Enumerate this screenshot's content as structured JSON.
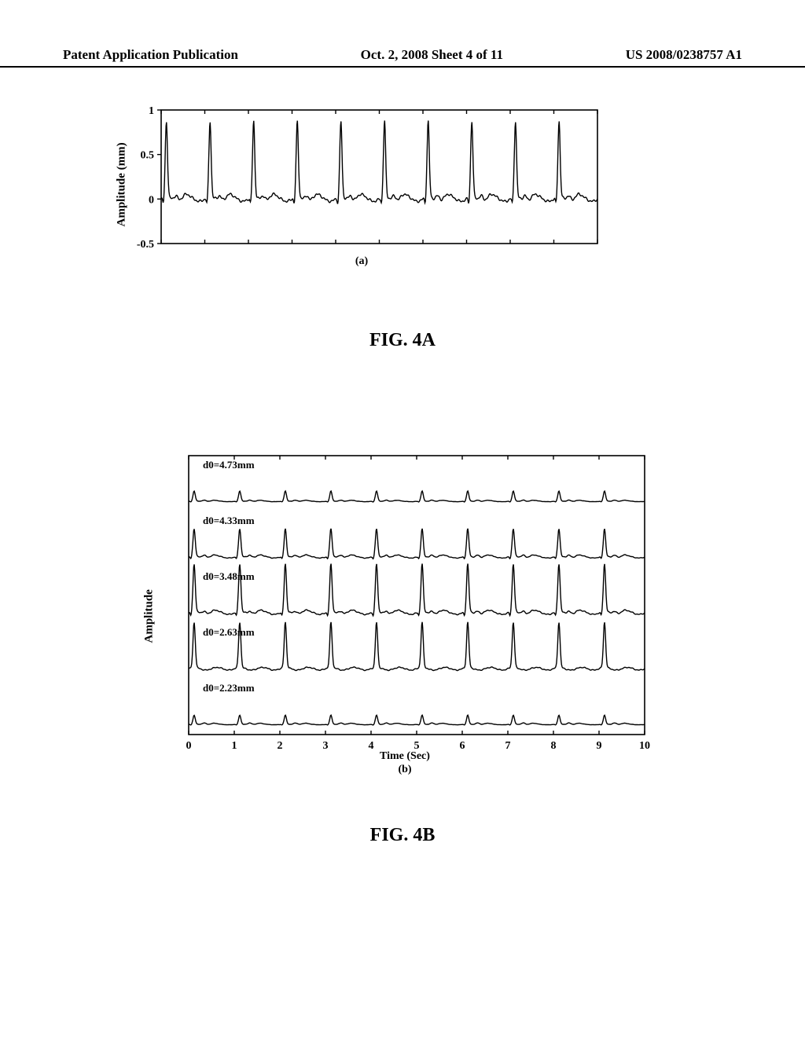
{
  "header": {
    "left": "Patent Application Publication",
    "center": "Oct. 2, 2008  Sheet 4 of 11",
    "right": "US 2008/0238757 A1"
  },
  "figA": {
    "label": "FIG. 4A",
    "sublabel": "(a)",
    "ylabel": "Amplitude (mm)",
    "yticks": [
      -0.5,
      0,
      0.5,
      1
    ],
    "ylim": [
      -0.5,
      1
    ],
    "xlim": [
      0,
      10
    ],
    "n_xticks": 11,
    "line_color": "#000000",
    "background": "#ffffff",
    "stroke_width": 1.4,
    "pulse_period": 1.0,
    "pulse_height": 0.85,
    "baseline": 0,
    "dicrotic_rise": 0.07,
    "noise_amp": 0.03
  },
  "figB": {
    "label": "FIG. 4B",
    "sublabel": "(b)",
    "ylabel": "Amplitude",
    "xlabel": "Time (Sec)",
    "xticks": [
      0,
      1,
      2,
      3,
      4,
      5,
      6,
      7,
      8,
      9,
      10
    ],
    "xlim": [
      0,
      10
    ],
    "line_color": "#000000",
    "background": "#ffffff",
    "stroke_width": 1.4,
    "series": [
      {
        "label": "d0=4.73mm",
        "amplitude": 0.2,
        "dicrotic": 0.15
      },
      {
        "label": "d0=4.33mm",
        "amplitude": 0.55,
        "dicrotic": 0.1
      },
      {
        "label": "d0=3.48mm",
        "amplitude": 0.95,
        "dicrotic": 0.06
      },
      {
        "label": "d0=2.63mm",
        "amplitude": 0.9,
        "dicrotic": 0.0
      },
      {
        "label": "d0=2.23mm",
        "amplitude": 0.18,
        "dicrotic": 0.2
      }
    ],
    "pulse_period": 1.0
  }
}
